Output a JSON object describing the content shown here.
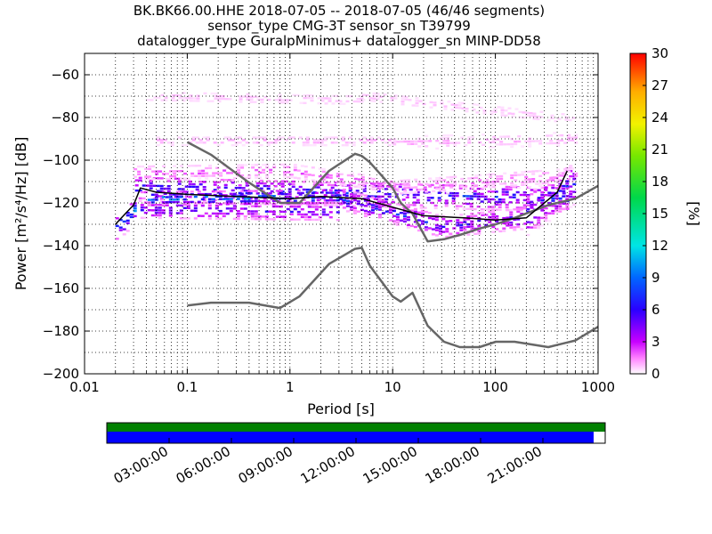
{
  "titles": {
    "line1": "BK.BK66.00.HHE   2018-07-05 -- 2018-07-05  (46/46 segments)",
    "line2": "sensor_type CMG-3T sensor_sn T39799",
    "line3": "datalogger_type GuralpMinimus+ datalogger_sn MINP-DD58"
  },
  "colors": {
    "noise_model": "#666666",
    "median": "#000000",
    "coverage_top": "#008000",
    "coverage_bottom": "#0000ff",
    "grid": "#000000"
  },
  "chart_data": [
    {
      "type": "heatmap",
      "title": "",
      "xlabel": "Period [s]",
      "ylabel": "Power [m²/s⁴/Hz] [dB]",
      "xscale": "log",
      "xlim": [
        0.01,
        1000
      ],
      "ylim": [
        -200,
        -50
      ],
      "xticks": [
        {
          "v": 0.01,
          "label": "0.01"
        },
        {
          "v": 0.1,
          "label": "0.1"
        },
        {
          "v": 1,
          "label": "1"
        },
        {
          "v": 10,
          "label": "10"
        },
        {
          "v": 100,
          "label": "100"
        },
        {
          "v": 1000,
          "label": "1000"
        }
      ],
      "yticks": [
        {
          "v": -60,
          "label": "−60"
        },
        {
          "v": -80,
          "label": "−80"
        },
        {
          "v": -100,
          "label": "−100"
        },
        {
          "v": -120,
          "label": "−120"
        },
        {
          "v": -140,
          "label": "−140"
        },
        {
          "v": -160,
          "label": "−160"
        },
        {
          "v": -180,
          "label": "−180"
        },
        {
          "v": -200,
          "label": "−200"
        }
      ],
      "grid": true,
      "colorbar": {
        "label": "[%]",
        "min": 0,
        "max": 30,
        "ticks": [
          "0",
          "3",
          "6",
          "9",
          "12",
          "15",
          "18",
          "21",
          "24",
          "27",
          "30"
        ]
      },
      "series": [
        {
          "kind": "noise_model_upper",
          "x": [
            0.1,
            0.17,
            0.4,
            0.8,
            1.24,
            2.4,
            4.3,
            5,
            6,
            10,
            12,
            15.6,
            21.9,
            31.6,
            45,
            70,
            101,
            154,
            328,
            600,
            1000
          ],
          "y": [
            -91.5,
            -97.4,
            -110.5,
            -120,
            -120,
            -105,
            -97,
            -98,
            -101,
            -113,
            -120,
            -125,
            -138,
            -137,
            -135,
            -132,
            -130,
            -127,
            -121,
            -118,
            -112
          ]
        },
        {
          "kind": "noise_model_lower",
          "x": [
            0.1,
            0.17,
            0.4,
            0.8,
            1.24,
            2.4,
            4.3,
            5,
            6,
            10,
            12,
            15.6,
            21.9,
            31.6,
            45,
            70,
            101,
            154,
            328,
            600,
            1000
          ],
          "y": [
            -168,
            -166.7,
            -166.7,
            -169.2,
            -163.7,
            -148.6,
            -141.5,
            -141,
            -149.4,
            -163.8,
            -166.2,
            -162.1,
            -177.5,
            -185,
            -187.5,
            -187.5,
            -185,
            -185,
            -187.5,
            -184.4,
            -178
          ]
        },
        {
          "kind": "median",
          "x": [
            0.02,
            0.025,
            0.03,
            0.035,
            0.05,
            0.1,
            0.3,
            1,
            2,
            5,
            10,
            20,
            50,
            100,
            200,
            400,
            500
          ],
          "y": [
            -130,
            -125,
            -121,
            -113,
            -115,
            -116,
            -117,
            -118,
            -117,
            -118,
            -122,
            -126,
            -127,
            -128,
            -127,
            -115,
            -105
          ]
        }
      ],
      "heatmap_bands": [
        {
          "xmin": 0.02,
          "xmax": 0.031,
          "yc_start": -132,
          "yc_end": -123,
          "halfwidth": 6,
          "level": 8
        },
        {
          "xmin": 0.031,
          "xmax": 500,
          "yc_start": -113,
          "yc_end": -118,
          "halfwidth": 6,
          "level": 6
        },
        {
          "xmin": 0.035,
          "xmax": 3,
          "yc_start": -123,
          "yc_end": -124,
          "halfwidth": 4,
          "level": 5
        },
        {
          "xmin": 0.035,
          "xmax": 3,
          "yc_start": -118,
          "yc_end": -117,
          "halfwidth": 3,
          "level": 9
        },
        {
          "xmin": 3,
          "xmax": 30,
          "yc_start": -118,
          "yc_end": -131,
          "halfwidth": 5,
          "level": 6
        },
        {
          "xmin": 30,
          "xmax": 200,
          "yc_start": -131,
          "yc_end": -127,
          "halfwidth": 5,
          "level": 5
        },
        {
          "xmin": 200,
          "xmax": 600,
          "yc_start": -125,
          "yc_end": -110,
          "halfwidth": 10,
          "level": 6
        },
        {
          "xmin": 0.03,
          "xmax": 1,
          "yc_start": -106,
          "yc_end": -105,
          "halfwidth": 3,
          "level": 2
        },
        {
          "xmin": 1,
          "xmax": 10,
          "yc_start": -105,
          "yc_end": -112,
          "halfwidth": 3,
          "level": 2
        },
        {
          "xmin": 10,
          "xmax": 600,
          "yc_start": -113,
          "yc_end": -107,
          "halfwidth": 4,
          "level": 1.5
        },
        {
          "xmin": 0.05,
          "xmax": 10,
          "yc_start": -91,
          "yc_end": -91,
          "halfwidth": 2,
          "level": 1
        },
        {
          "xmin": 10,
          "xmax": 600,
          "yc_start": -92,
          "yc_end": -90,
          "halfwidth": 3,
          "level": 1
        },
        {
          "xmin": 0.04,
          "xmax": 5,
          "yc_start": -70,
          "yc_end": -72,
          "halfwidth": 3,
          "level": 0.7
        },
        {
          "xmin": 5,
          "xmax": 600,
          "yc_start": -70,
          "yc_end": -81,
          "halfwidth": 3,
          "level": 0.7
        }
      ]
    },
    {
      "type": "timeline",
      "description": "data coverage bars",
      "start": "2018-07-05T00:00:00",
      "end": "2018-07-06T00:00:00",
      "coverage_end": "2018-07-05T23:30:00",
      "tick_labels": [
        "03:00:00",
        "06:00:00",
        "09:00:00",
        "12:00:00",
        "15:00:00",
        "18:00:00",
        "21:00:00"
      ],
      "tick_hours": [
        3,
        6,
        9,
        12,
        15,
        18,
        21
      ]
    }
  ]
}
